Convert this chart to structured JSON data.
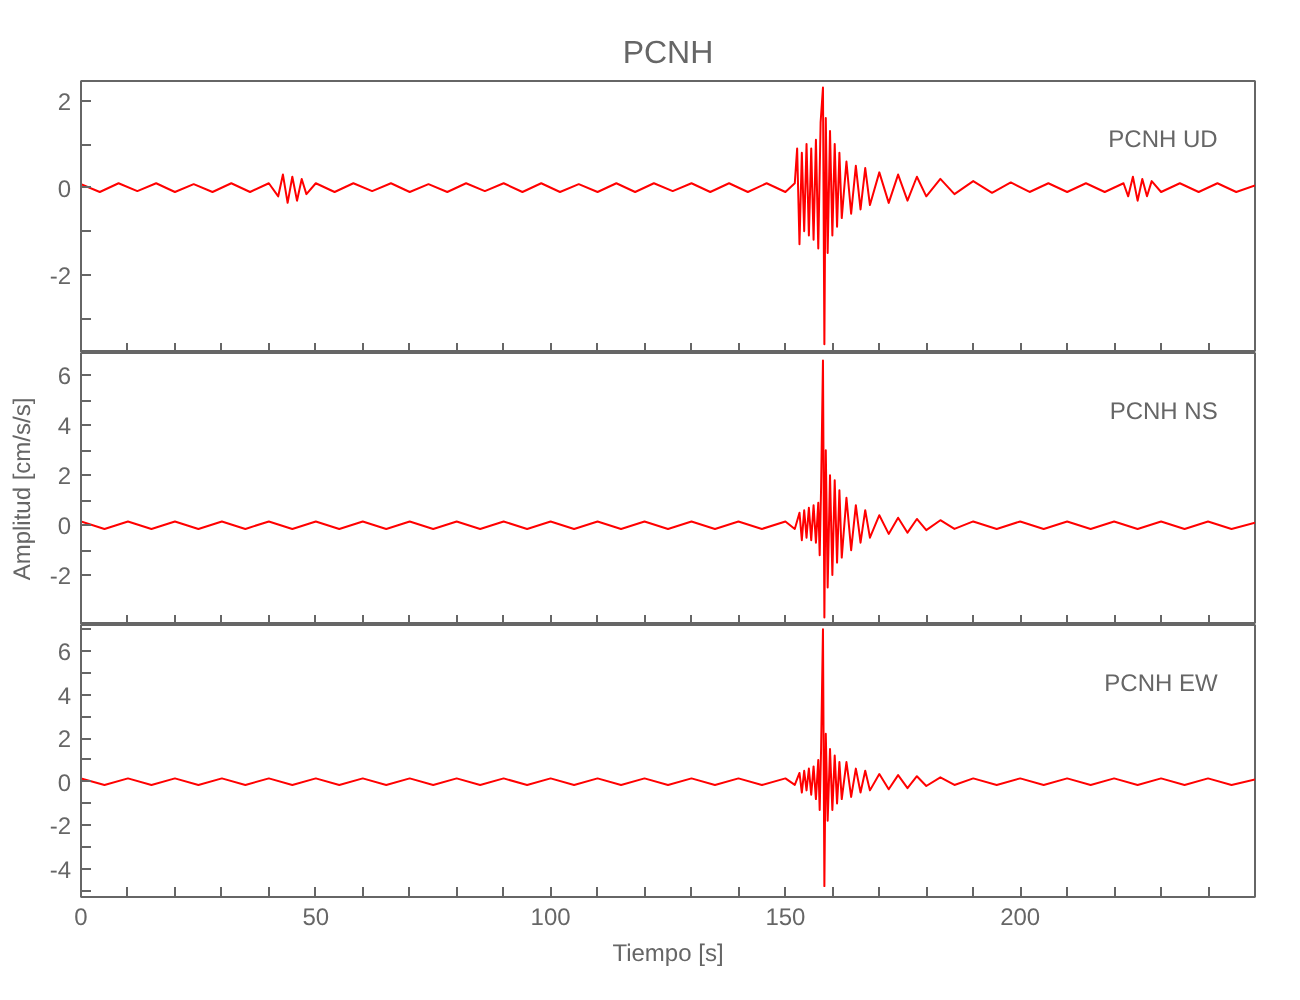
{
  "chart_data": [
    {
      "type": "line",
      "title": "PCNH",
      "annotations": [
        "PCNH   UD"
      ],
      "grid": false,
      "tick_labels": "y",
      "xlim": [
        0,
        250
      ],
      "ylim": [
        -3.8,
        2.45
      ],
      "xticks": [
        {
          "value": 0,
          "label": null
        },
        {
          "value": 10,
          "label": null
        },
        {
          "value": 20,
          "label": null
        },
        {
          "value": 30,
          "label": null
        },
        {
          "value": 40,
          "label": null
        },
        {
          "value": 50,
          "label": null
        },
        {
          "value": 60,
          "label": null
        },
        {
          "value": 70,
          "label": null
        },
        {
          "value": 80,
          "label": null
        },
        {
          "value": 90,
          "label": null
        },
        {
          "value": 100,
          "label": null
        },
        {
          "value": 110,
          "label": null
        },
        {
          "value": 120,
          "label": null
        },
        {
          "value": 130,
          "label": null
        },
        {
          "value": 140,
          "label": null
        },
        {
          "value": 150,
          "label": null
        },
        {
          "value": 160,
          "label": null
        },
        {
          "value": 170,
          "label": null
        },
        {
          "value": 180,
          "label": null
        },
        {
          "value": 190,
          "label": null
        },
        {
          "value": 200,
          "label": null
        },
        {
          "value": 210,
          "label": null
        },
        {
          "value": 220,
          "label": null
        },
        {
          "value": 230,
          "label": null
        },
        {
          "value": 240,
          "label": null
        }
      ],
      "yticks": [
        {
          "value": -3,
          "label": null
        },
        -2,
        {
          "value": -1,
          "label": null
        },
        0,
        {
          "value": 1,
          "label": null
        },
        2
      ],
      "series": [
        {
          "type": "line",
          "color": "#ff0000",
          "x": [
            0,
            4,
            8,
            12,
            16,
            20,
            24,
            28,
            32,
            36,
            40,
            42,
            43,
            44,
            45,
            46,
            47,
            48,
            50,
            54,
            58,
            62,
            66,
            70,
            74,
            78,
            82,
            86,
            90,
            94,
            98,
            102,
            106,
            110,
            114,
            118,
            122,
            126,
            130,
            134,
            138,
            142,
            146,
            150,
            152,
            152.5,
            153,
            153.5,
            154,
            154.5,
            155,
            155.5,
            156,
            156.5,
            157,
            157.5,
            158,
            158.3,
            158.6,
            159,
            159.5,
            160,
            160.5,
            161,
            161.5,
            162,
            163,
            164,
            165,
            166,
            167,
            168,
            170,
            172,
            174,
            176,
            178,
            180,
            183,
            186,
            190,
            194,
            198,
            202,
            206,
            210,
            214,
            218,
            222,
            223,
            224,
            225,
            226,
            227,
            228,
            230,
            234,
            238,
            242,
            246,
            250
          ],
          "values": [
            0.08,
            -0.1,
            0.1,
            -0.08,
            0.1,
            -0.1,
            0.08,
            -0.1,
            0.1,
            -0.1,
            0.1,
            -0.2,
            0.3,
            -0.35,
            0.25,
            -0.3,
            0.2,
            -0.15,
            0.1,
            -0.1,
            0.1,
            -0.08,
            0.1,
            -0.1,
            0.08,
            -0.1,
            0.1,
            -0.08,
            0.1,
            -0.1,
            0.1,
            -0.1,
            0.08,
            -0.1,
            0.1,
            -0.1,
            0.1,
            -0.08,
            0.1,
            -0.1,
            0.1,
            -0.1,
            0.1,
            -0.1,
            0.1,
            0.9,
            -1.3,
            0.8,
            -1.0,
            1.0,
            -1.1,
            0.9,
            -1.2,
            1.1,
            -1.4,
            1.5,
            2.3,
            -3.6,
            1.6,
            -1.5,
            1.3,
            -1.1,
            1.0,
            -0.9,
            0.8,
            -0.7,
            0.6,
            -0.6,
            0.5,
            -0.5,
            0.45,
            -0.4,
            0.35,
            -0.35,
            0.3,
            -0.3,
            0.25,
            -0.2,
            0.2,
            -0.15,
            0.15,
            -0.12,
            0.12,
            -0.1,
            0.1,
            -0.1,
            0.1,
            -0.1,
            0.1,
            -0.2,
            0.25,
            -0.3,
            0.2,
            -0.2,
            0.15,
            -0.1,
            0.1,
            -0.1,
            0.1,
            -0.1,
            0.05
          ]
        }
      ]
    },
    {
      "type": "line",
      "ylabel": "Amplitud [cm/s/s]",
      "annotations": [
        "PCNH   NS"
      ],
      "grid": false,
      "tick_labels": "y",
      "xlim": [
        0,
        250
      ],
      "ylim": [
        -4.0,
        6.9
      ],
      "xticks": [
        {
          "value": 0,
          "label": null
        },
        {
          "value": 10,
          "label": null
        },
        {
          "value": 20,
          "label": null
        },
        {
          "value": 30,
          "label": null
        },
        {
          "value": 40,
          "label": null
        },
        {
          "value": 50,
          "label": null
        },
        {
          "value": 60,
          "label": null
        },
        {
          "value": 70,
          "label": null
        },
        {
          "value": 80,
          "label": null
        },
        {
          "value": 90,
          "label": null
        },
        {
          "value": 100,
          "label": null
        },
        {
          "value": 110,
          "label": null
        },
        {
          "value": 120,
          "label": null
        },
        {
          "value": 130,
          "label": null
        },
        {
          "value": 140,
          "label": null
        },
        {
          "value": 150,
          "label": null
        },
        {
          "value": 160,
          "label": null
        },
        {
          "value": 170,
          "label": null
        },
        {
          "value": 180,
          "label": null
        },
        {
          "value": 190,
          "label": null
        },
        {
          "value": 200,
          "label": null
        },
        {
          "value": 210,
          "label": null
        },
        {
          "value": 220,
          "label": null
        },
        {
          "value": 230,
          "label": null
        },
        {
          "value": 240,
          "label": null
        }
      ],
      "yticks": [
        -2,
        {
          "value": -1,
          "label": null
        },
        0,
        {
          "value": 1,
          "label": null
        },
        2,
        {
          "value": 3,
          "label": null
        },
        4,
        {
          "value": 5,
          "label": null
        },
        6
      ],
      "series": [
        {
          "type": "line",
          "color": "#ff0000",
          "x": [
            0,
            5,
            10,
            15,
            20,
            25,
            30,
            35,
            40,
            45,
            50,
            55,
            60,
            65,
            70,
            75,
            80,
            85,
            90,
            95,
            100,
            105,
            110,
            115,
            120,
            125,
            130,
            135,
            140,
            145,
            150,
            152,
            153,
            153.5,
            154,
            154.5,
            155,
            155.5,
            156,
            156.5,
            157,
            157.3,
            157.6,
            158,
            158.3,
            158.6,
            159,
            159.5,
            160,
            160.5,
            161,
            161.5,
            162,
            163,
            164,
            165,
            166,
            167,
            168,
            170,
            172,
            174,
            176,
            178,
            180,
            183,
            186,
            190,
            195,
            200,
            205,
            210,
            215,
            220,
            225,
            230,
            235,
            240,
            245,
            250
          ],
          "values": [
            0.15,
            -0.15,
            0.15,
            -0.15,
            0.15,
            -0.15,
            0.15,
            -0.15,
            0.15,
            -0.15,
            0.15,
            -0.15,
            0.15,
            -0.15,
            0.15,
            -0.15,
            0.15,
            -0.15,
            0.15,
            -0.15,
            0.15,
            -0.15,
            0.15,
            -0.15,
            0.15,
            -0.15,
            0.15,
            -0.15,
            0.15,
            -0.15,
            0.15,
            -0.15,
            0.5,
            -0.6,
            0.6,
            -0.5,
            0.7,
            -0.6,
            0.8,
            -0.7,
            0.9,
            -1.2,
            1.5,
            6.6,
            -3.7,
            3.0,
            -2.5,
            2.0,
            -2.0,
            1.8,
            -1.5,
            1.4,
            -1.3,
            1.1,
            -1.0,
            0.8,
            -0.7,
            0.6,
            -0.5,
            0.4,
            -0.35,
            0.3,
            -0.3,
            0.25,
            -0.2,
            0.2,
            -0.15,
            0.15,
            -0.15,
            0.15,
            -0.15,
            0.15,
            -0.15,
            0.15,
            -0.15,
            0.15,
            -0.15,
            0.15,
            -0.15,
            0.1
          ]
        }
      ]
    },
    {
      "type": "line",
      "xlabel": "Tiempo [s]",
      "annotations": [
        "PCNH   EW"
      ],
      "grid": false,
      "xlim": [
        0,
        250
      ],
      "ylim": [
        -5.3,
        7.2
      ],
      "xticks": [
        0,
        {
          "value": 10,
          "label": null
        },
        {
          "value": 20,
          "label": null
        },
        {
          "value": 30,
          "label": null
        },
        {
          "value": 40,
          "label": null
        },
        50,
        {
          "value": 60,
          "label": null
        },
        {
          "value": 70,
          "label": null
        },
        {
          "value": 80,
          "label": null
        },
        {
          "value": 90,
          "label": null
        },
        100,
        {
          "value": 110,
          "label": null
        },
        {
          "value": 120,
          "label": null
        },
        {
          "value": 130,
          "label": null
        },
        {
          "value": 140,
          "label": null
        },
        150,
        {
          "value": 160,
          "label": null
        },
        {
          "value": 170,
          "label": null
        },
        {
          "value": 180,
          "label": null
        },
        {
          "value": 190,
          "label": null
        },
        200,
        {
          "value": 210,
          "label": null
        },
        {
          "value": 220,
          "label": null
        },
        {
          "value": 230,
          "label": null
        },
        {
          "value": 240,
          "label": null
        }
      ],
      "yticks": [
        {
          "value": -5,
          "label": null
        },
        -4,
        {
          "value": -3,
          "label": null
        },
        -2,
        {
          "value": -1,
          "label": null
        },
        0,
        {
          "value": 1,
          "label": null
        },
        2,
        {
          "value": 3,
          "label": null
        },
        4,
        {
          "value": 5,
          "label": null
        },
        6,
        {
          "value": 7,
          "label": null
        }
      ],
      "series": [
        {
          "type": "line",
          "color": "#ff0000",
          "x": [
            0,
            5,
            10,
            15,
            20,
            25,
            30,
            35,
            40,
            45,
            50,
            55,
            60,
            65,
            70,
            75,
            80,
            85,
            90,
            95,
            100,
            105,
            110,
            115,
            120,
            125,
            130,
            135,
            140,
            145,
            150,
            152,
            153,
            153.5,
            154,
            154.5,
            155,
            155.5,
            156,
            156.5,
            157,
            157.3,
            157.6,
            158,
            158.3,
            158.6,
            159,
            159.5,
            160,
            160.5,
            161,
            161.5,
            162,
            163,
            164,
            165,
            166,
            167,
            168,
            170,
            172,
            174,
            176,
            178,
            180,
            183,
            186,
            190,
            195,
            200,
            205,
            210,
            215,
            220,
            225,
            230,
            235,
            240,
            245,
            250
          ],
          "values": [
            0.15,
            -0.15,
            0.15,
            -0.15,
            0.15,
            -0.15,
            0.15,
            -0.15,
            0.15,
            -0.15,
            0.15,
            -0.15,
            0.15,
            -0.15,
            0.15,
            -0.15,
            0.15,
            -0.15,
            0.15,
            -0.15,
            0.15,
            -0.15,
            0.15,
            -0.15,
            0.15,
            -0.15,
            0.15,
            -0.15,
            0.15,
            -0.15,
            0.15,
            -0.15,
            0.4,
            -0.5,
            0.5,
            -0.4,
            0.6,
            -0.6,
            0.7,
            -0.8,
            1.0,
            -1.3,
            1.5,
            7.0,
            -4.8,
            2.2,
            -1.8,
            1.5,
            -1.3,
            1.2,
            -1.0,
            0.9,
            -0.8,
            0.9,
            -0.7,
            0.6,
            -0.5,
            0.5,
            -0.4,
            0.35,
            -0.35,
            0.3,
            -0.3,
            0.25,
            -0.2,
            0.2,
            -0.15,
            0.15,
            -0.15,
            0.15,
            -0.15,
            0.15,
            -0.15,
            0.15,
            -0.15,
            0.15,
            -0.15,
            0.15,
            -0.15,
            0.1
          ]
        }
      ]
    }
  ]
}
